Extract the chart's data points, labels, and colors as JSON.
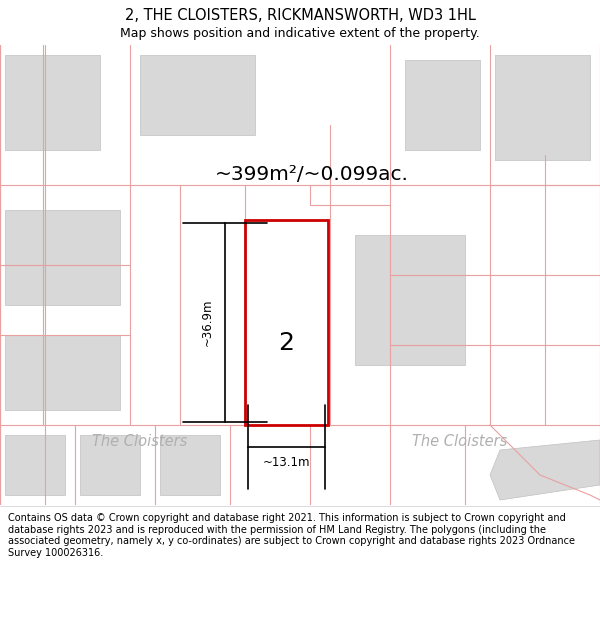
{
  "title_line1": "2, THE CLOISTERS, RICKMANSWORTH, WD3 1HL",
  "title_line2": "Map shows position and indicative extent of the property.",
  "area_label": "~399m²/~0.099ac.",
  "plot_number": "2",
  "width_label": "~13.1m",
  "height_label": "~36.9m",
  "street_label_left": "The Cloisters",
  "street_label_right": "The Cloisters",
  "footer_text": "Contains OS data © Crown copyright and database right 2021. This information is subject to Crown copyright and database rights 2023 and is reproduced with the permission of HM Land Registry. The polygons (including the associated geometry, namely x, y co-ordinates) are subject to Crown copyright and database rights 2023 Ordnance Survey 100026316.",
  "bg_color": "#ffffff",
  "plot_fill": "#ffffff",
  "plot_border": "#cc0000",
  "map_bg": "#ffffff",
  "building_fill": "#d8d8d8",
  "building_edge": "#c0c0c0",
  "pink_line": "#e8a0a0",
  "street_text_color": "#aaaaaa",
  "title_sep_line": "#dddddd"
}
